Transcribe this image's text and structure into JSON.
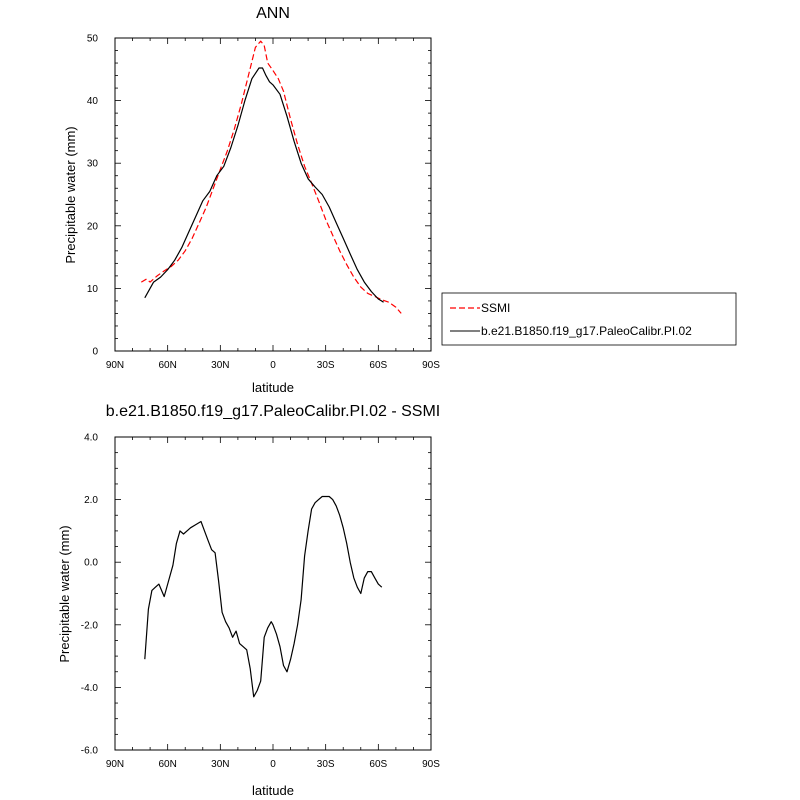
{
  "chart_data": [
    {
      "type": "line",
      "title": "ANN",
      "xlabel": "latitude",
      "ylabel": "Precipitable water (mm)",
      "xlim": [
        90,
        -90
      ],
      "ylim": [
        0,
        50
      ],
      "xticks": [
        90,
        60,
        30,
        0,
        -30,
        -60,
        -90
      ],
      "xtick_labels": [
        "90N",
        "60N",
        "30N",
        "0",
        "30S",
        "60S",
        "90S"
      ],
      "yticks": [
        0,
        10,
        20,
        30,
        40,
        50
      ],
      "ytick_labels": [
        "0",
        "10",
        "20",
        "30",
        "40",
        "50"
      ],
      "legend_position": "right-outside",
      "series": [
        {
          "name": "SSMI",
          "color": "#ff0000",
          "dash": "dashed",
          "x": [
            75,
            72,
            70,
            66,
            62,
            58,
            54,
            50,
            46,
            42,
            38,
            34,
            30,
            26,
            22,
            18,
            14,
            10,
            7,
            5,
            3,
            0,
            -3,
            -6,
            -10,
            -14,
            -18,
            -22,
            -26,
            -30,
            -34,
            -38,
            -42,
            -46,
            -50,
            -54,
            -58,
            -62,
            -66,
            -70,
            -73
          ],
          "y": [
            11.0,
            11.5,
            11.0,
            12.0,
            12.8,
            13.5,
            14.5,
            16.0,
            18.0,
            20.5,
            23.0,
            26.0,
            29.0,
            32.0,
            35.5,
            39.5,
            44.0,
            48.5,
            49.5,
            48.8,
            46.0,
            44.8,
            43.5,
            41.5,
            37.0,
            33.0,
            29.5,
            26.8,
            24.0,
            21.0,
            18.5,
            16.0,
            13.8,
            11.8,
            10.2,
            9.2,
            8.7,
            8.2,
            7.8,
            7.0,
            6.0
          ]
        },
        {
          "name": "b.e21.B1850.f19_g17.PaleoCalibr.PI.02",
          "color": "#000000",
          "dash": "solid",
          "x": [
            73,
            68,
            64,
            60,
            56,
            52,
            48,
            44,
            40,
            36,
            32,
            28,
            24,
            20,
            16,
            12,
            8,
            6,
            4,
            2,
            0,
            -4,
            -8,
            -12,
            -16,
            -20,
            -24,
            -28,
            -32,
            -36,
            -40,
            -44,
            -48,
            -52,
            -56,
            -60,
            -63
          ],
          "y": [
            8.5,
            11.0,
            11.8,
            13.0,
            14.5,
            16.5,
            19.0,
            21.5,
            24.0,
            25.5,
            28.0,
            29.5,
            32.5,
            36.0,
            40.0,
            43.5,
            45.2,
            45.2,
            44.0,
            43.0,
            42.5,
            41.0,
            37.5,
            33.5,
            30.0,
            27.5,
            26.2,
            25.0,
            23.0,
            20.5,
            18.0,
            15.5,
            13.0,
            11.0,
            9.5,
            8.3,
            7.8
          ]
        }
      ]
    },
    {
      "type": "line",
      "title": "b.e21.B1850.f19_g17.PaleoCalibr.PI.02 - SSMI",
      "xlabel": "latitude",
      "ylabel": "Precipitable water (mm)",
      "xlim": [
        90,
        -90
      ],
      "ylim": [
        -6,
        4
      ],
      "xticks": [
        90,
        60,
        30,
        0,
        -30,
        -60,
        -90
      ],
      "xtick_labels": [
        "90N",
        "60N",
        "30N",
        "0",
        "30S",
        "60S",
        "90S"
      ],
      "yticks": [
        4,
        2,
        0,
        -2,
        -4,
        -6
      ],
      "ytick_labels": [
        "4.0",
        "2.0",
        "0.0",
        "-2.0",
        "-4.0",
        "-6.0"
      ],
      "series": [
        {
          "color": "#000000",
          "dash": "solid",
          "x": [
            73,
            71,
            69,
            67,
            65,
            62,
            59,
            57,
            55,
            53,
            51,
            49,
            47,
            44,
            41,
            39,
            37,
            35,
            33,
            31,
            29,
            27,
            25,
            23,
            21,
            19,
            17,
            15,
            13,
            11,
            9,
            7,
            5,
            3,
            1,
            0,
            -2,
            -4,
            -6,
            -8,
            -10,
            -12,
            -14,
            -16,
            -18,
            -20,
            -22,
            -24,
            -26,
            -28,
            -30,
            -32,
            -34,
            -36,
            -38,
            -40,
            -42,
            -44,
            -46,
            -48,
            -50,
            -52,
            -54,
            -56,
            -58,
            -60,
            -62
          ],
          "y": [
            -3.1,
            -1.5,
            -0.9,
            -0.8,
            -0.7,
            -1.1,
            -0.5,
            -0.1,
            0.6,
            1.0,
            0.9,
            1.0,
            1.1,
            1.2,
            1.3,
            1.0,
            0.7,
            0.4,
            0.3,
            -0.6,
            -1.6,
            -1.9,
            -2.1,
            -2.4,
            -2.2,
            -2.6,
            -2.7,
            -2.8,
            -3.4,
            -4.3,
            -4.1,
            -3.8,
            -2.4,
            -2.1,
            -1.9,
            -2.0,
            -2.3,
            -2.7,
            -3.3,
            -3.5,
            -3.1,
            -2.6,
            -2.0,
            -1.2,
            0.2,
            1.0,
            1.7,
            1.9,
            2.0,
            2.1,
            2.1,
            2.1,
            2.0,
            1.8,
            1.5,
            1.1,
            0.6,
            0.0,
            -0.5,
            -0.8,
            -1.0,
            -0.5,
            -0.3,
            -0.3,
            -0.5,
            -0.7,
            -0.8
          ]
        }
      ]
    }
  ]
}
